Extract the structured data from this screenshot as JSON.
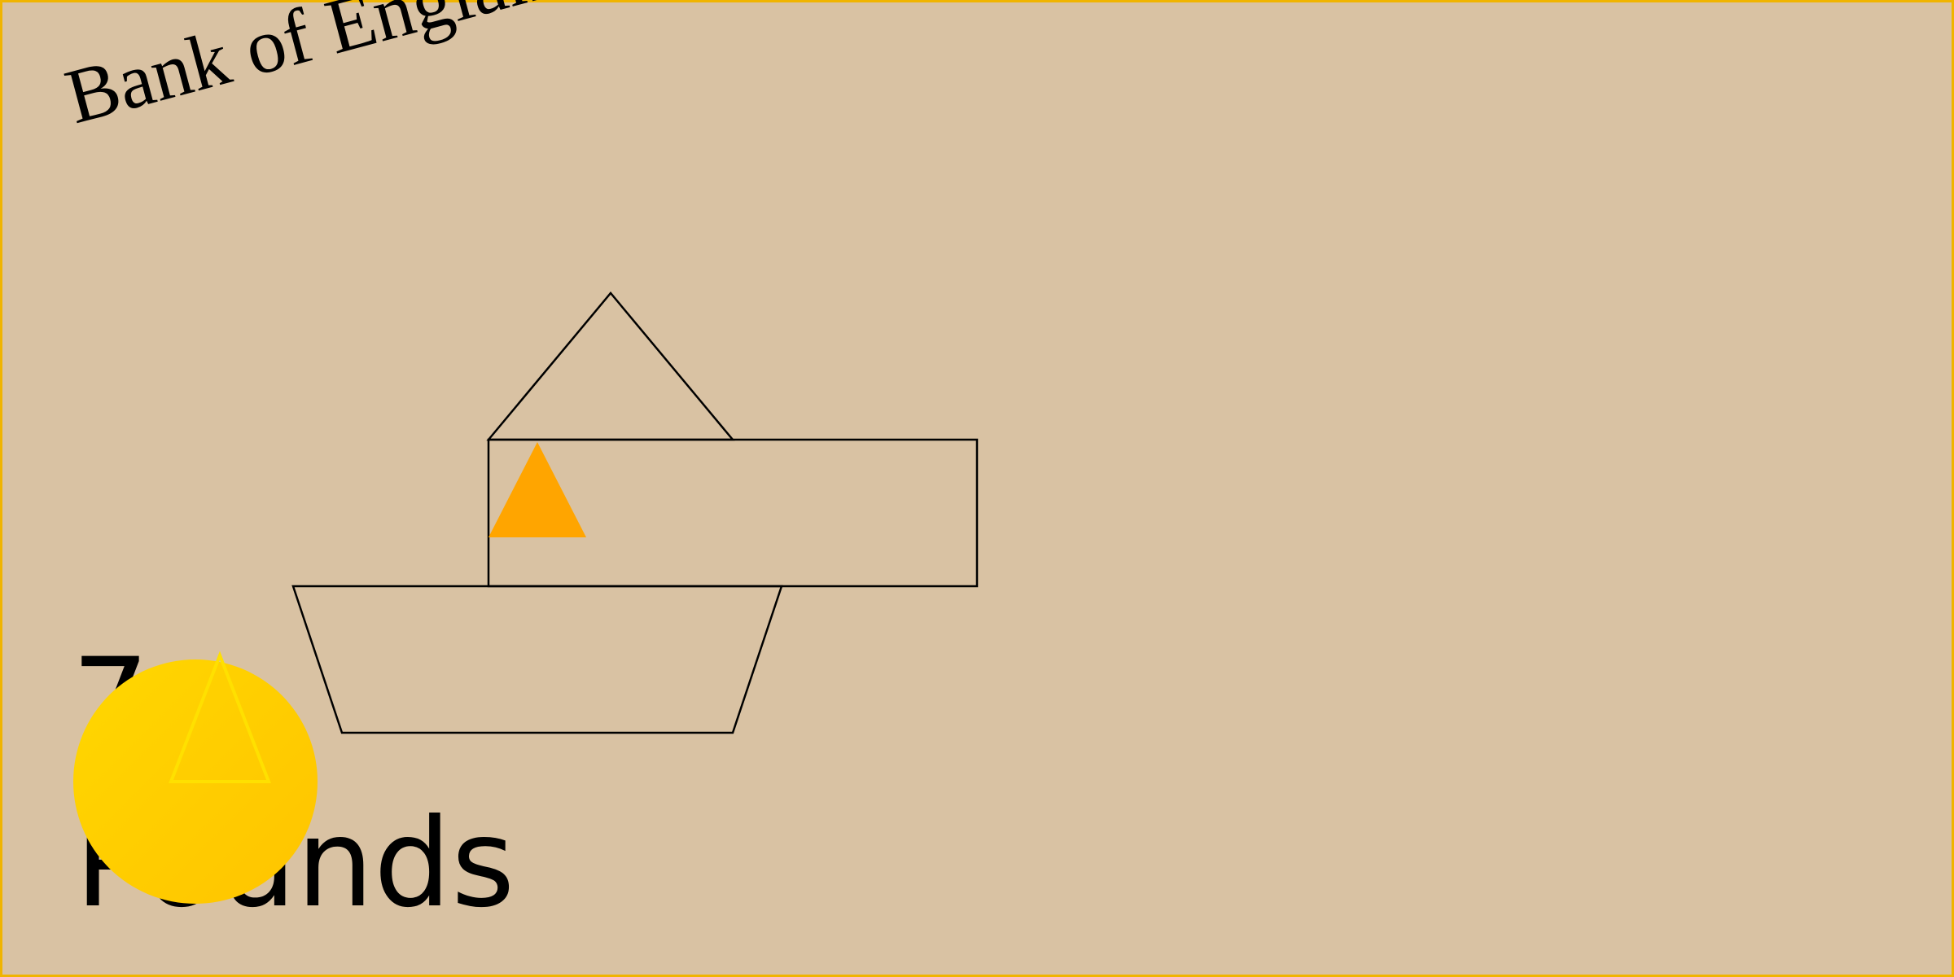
{
  "note": {
    "issuer": "Bank of England",
    "denomination": "7",
    "currency": "Pounds"
  },
  "colors": {
    "paper": "#d9c2a3",
    "border": "#f0b400",
    "ink": "#000000",
    "accent_triangle": "#ffa500",
    "seal_light": "#ffd700",
    "seal_dark": "#ffc400",
    "seal_triangle_stroke": "#ffe000"
  },
  "icons": {
    "boat": "boat-drawing",
    "seal": "gold-seal-icon"
  }
}
